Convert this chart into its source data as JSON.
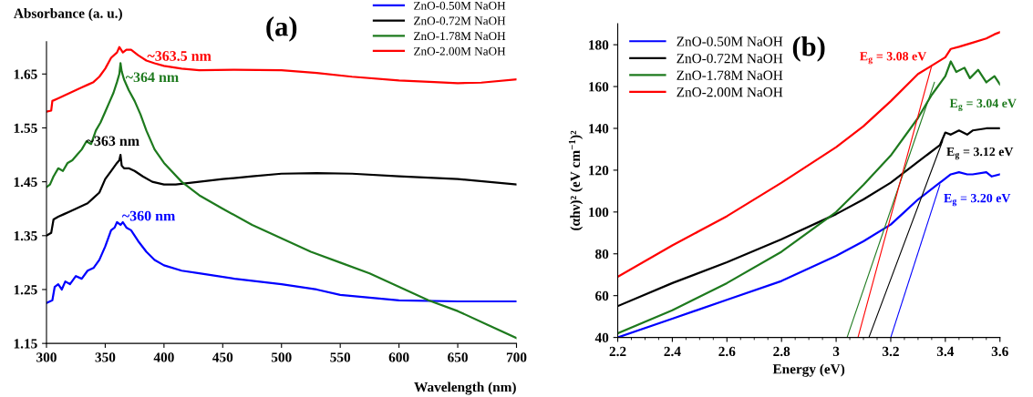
{
  "chart_data": [
    {
      "type": "line",
      "title": "(a)",
      "xlabel": "Wavelength (nm)",
      "ylabel": "Absorbance (a. u.)",
      "legend": "top right",
      "grid": false,
      "xlim": [
        300,
        700
      ],
      "xticks": [
        300,
        350,
        400,
        450,
        500,
        550,
        600,
        650,
        700
      ],
      "ylim": [
        1.15,
        1.71
      ],
      "yticks": [
        1.15,
        1.25,
        1.35,
        1.45,
        1.55,
        1.65
      ],
      "series": [
        {
          "name": "ZnO-0.50M NaOH",
          "color": "#0000ff",
          "x": [
            300,
            305,
            307,
            310,
            313,
            316,
            320,
            325,
            330,
            335,
            340,
            345,
            350,
            355,
            358,
            360,
            363,
            365,
            368,
            372,
            378,
            385,
            392,
            400,
            415,
            430,
            460,
            500,
            530,
            550,
            575,
            600,
            650,
            700
          ],
          "values": [
            1.225,
            1.23,
            1.255,
            1.26,
            1.25,
            1.265,
            1.26,
            1.275,
            1.27,
            1.285,
            1.29,
            1.305,
            1.33,
            1.36,
            1.365,
            1.375,
            1.37,
            1.375,
            1.365,
            1.36,
            1.34,
            1.32,
            1.305,
            1.295,
            1.285,
            1.28,
            1.27,
            1.26,
            1.25,
            1.24,
            1.235,
            1.23,
            1.228,
            1.228
          ]
        },
        {
          "name": "ZnO-0.72M NaOH",
          "color": "#000000",
          "x": [
            300,
            304,
            306,
            310,
            315,
            320,
            325,
            330,
            335,
            340,
            345,
            350,
            355,
            360,
            362,
            363,
            364,
            366,
            370,
            375,
            382,
            390,
            400,
            410,
            430,
            450,
            475,
            500,
            530,
            560,
            600,
            650,
            700
          ],
          "values": [
            1.35,
            1.355,
            1.38,
            1.385,
            1.39,
            1.395,
            1.4,
            1.405,
            1.41,
            1.42,
            1.43,
            1.455,
            1.47,
            1.485,
            1.49,
            1.5,
            1.48,
            1.475,
            1.475,
            1.47,
            1.46,
            1.45,
            1.445,
            1.445,
            1.45,
            1.455,
            1.46,
            1.465,
            1.466,
            1.465,
            1.46,
            1.455,
            1.445
          ]
        },
        {
          "name": "ZnO-1.78M NaOH",
          "color": "#1e7a1e",
          "x": [
            300,
            303,
            306,
            310,
            314,
            318,
            322,
            326,
            330,
            334,
            338,
            342,
            346,
            350,
            354,
            357,
            360,
            362,
            363,
            364,
            366,
            370,
            375,
            380,
            385,
            392,
            400,
            415,
            430,
            450,
            475,
            500,
            525,
            550,
            575,
            600,
            625,
            650,
            675,
            700
          ],
          "values": [
            1.44,
            1.445,
            1.46,
            1.475,
            1.47,
            1.485,
            1.49,
            1.5,
            1.51,
            1.525,
            1.52,
            1.545,
            1.56,
            1.58,
            1.6,
            1.615,
            1.635,
            1.65,
            1.67,
            1.655,
            1.64,
            1.62,
            1.6,
            1.575,
            1.545,
            1.51,
            1.485,
            1.45,
            1.425,
            1.4,
            1.37,
            1.345,
            1.32,
            1.3,
            1.28,
            1.255,
            1.23,
            1.21,
            1.185,
            1.16
          ]
        },
        {
          "name": "ZnO-2.00M NaOH",
          "color": "#ff0000",
          "x": [
            300,
            304,
            305,
            310,
            315,
            320,
            325,
            330,
            335,
            340,
            345,
            350,
            355,
            360,
            362,
            365,
            368,
            372,
            378,
            385,
            392,
            400,
            415,
            430,
            460,
            500,
            530,
            560,
            600,
            630,
            650,
            670,
            700
          ],
          "values": [
            1.58,
            1.582,
            1.6,
            1.605,
            1.61,
            1.615,
            1.62,
            1.625,
            1.63,
            1.635,
            1.645,
            1.66,
            1.68,
            1.69,
            1.7,
            1.69,
            1.695,
            1.695,
            1.685,
            1.675,
            1.67,
            1.665,
            1.66,
            1.657,
            1.658,
            1.657,
            1.652,
            1.645,
            1.638,
            1.635,
            1.633,
            1.634,
            1.64
          ]
        }
      ],
      "annotations": [
        "~363.5 nm",
        "~364 nm",
        "~363 nm",
        "~360 nm"
      ]
    },
    {
      "type": "line",
      "title": "(b)",
      "xlabel": "Energy (eV)",
      "ylabel": "(αhν)² (eV cm$^{−1}$)²",
      "legend": "top left",
      "grid": false,
      "xlim": [
        2.2,
        3.6
      ],
      "xticks": [
        2.2,
        {
          "value": 2.25,
          "label": null
        },
        {
          "value": 2.3,
          "label": null
        },
        {
          "value": 2.35,
          "label": null
        },
        2.4,
        {
          "value": 2.45,
          "label": null
        },
        {
          "value": 2.5,
          "label": null
        },
        {
          "value": 2.55,
          "label": null
        },
        2.6,
        {
          "value": 2.65,
          "label": null
        },
        {
          "value": 2.7,
          "label": null
        },
        {
          "value": 2.75,
          "label": null
        },
        2.8,
        {
          "value": 2.85,
          "label": null
        },
        {
          "value": 2.9,
          "label": null
        },
        {
          "value": 2.95,
          "label": null
        },
        3,
        {
          "value": 3.05,
          "label": null
        },
        {
          "value": 3.1,
          "label": null
        },
        {
          "value": 3.15,
          "label": null
        },
        3.2,
        {
          "value": 3.25,
          "label": null
        },
        {
          "value": 3.3,
          "label": null
        },
        {
          "value": 3.35,
          "label": null
        },
        3.4,
        {
          "value": 3.45,
          "label": null
        },
        {
          "value": 3.5,
          "label": null
        },
        {
          "value": 3.55,
          "label": null
        },
        3.6
      ],
      "ylim": [
        40,
        190
      ],
      "yticks": [
        40,
        60,
        80,
        100,
        120,
        140,
        160,
        180
      ],
      "series": [
        {
          "name": "ZnO-0.50M NaOH",
          "color": "#0000ff",
          "x": [
            2.2,
            2.4,
            2.6,
            2.8,
            3.0,
            3.1,
            3.2,
            3.25,
            3.3,
            3.37,
            3.39,
            3.42,
            3.45,
            3.48,
            3.5,
            3.55,
            3.57,
            3.6
          ],
          "values": [
            40,
            49,
            58,
            67,
            79,
            86,
            94,
            100,
            106,
            113,
            115,
            118,
            119,
            118,
            118,
            119,
            117,
            118
          ]
        },
        {
          "name": "ZnO-0.72M NaOH",
          "color": "#000000",
          "x": [
            2.2,
            2.4,
            2.6,
            2.8,
            3.0,
            3.1,
            3.2,
            3.3,
            3.38,
            3.4,
            3.42,
            3.45,
            3.48,
            3.5,
            3.55,
            3.6
          ],
          "values": [
            55,
            66,
            76,
            87,
            99,
            106,
            114,
            124,
            132,
            138,
            137,
            139,
            137,
            139,
            140,
            140
          ]
        },
        {
          "name": "ZnO-1.78M NaOH",
          "color": "#1e7a1e",
          "x": [
            2.2,
            2.4,
            2.6,
            2.8,
            3.0,
            3.1,
            3.2,
            3.3,
            3.35,
            3.4,
            3.42,
            3.44,
            3.47,
            3.49,
            3.52,
            3.55,
            3.58,
            3.6
          ],
          "values": [
            42,
            53,
            66,
            81,
            100,
            113,
            127,
            145,
            156,
            165,
            172,
            167,
            169,
            164,
            168,
            162,
            165,
            161
          ]
        },
        {
          "name": "ZnO-2.00M NaOH",
          "color": "#ff0000",
          "x": [
            2.2,
            2.4,
            2.6,
            2.8,
            3.0,
            3.1,
            3.2,
            3.3,
            3.35,
            3.4,
            3.42,
            3.45,
            3.5,
            3.55,
            3.58,
            3.6
          ],
          "values": [
            69,
            84,
            98,
            114,
            131,
            141,
            153,
            166,
            170,
            174,
            178,
            179,
            181,
            183,
            185,
            186
          ]
        },
        {
          "color": "#0000ff",
          "x": [
            3.2,
            3.38
          ],
          "values": [
            40,
            113
          ]
        },
        {
          "color": "#000000",
          "x": [
            3.12,
            3.39
          ],
          "values": [
            40,
            134
          ]
        },
        {
          "color": "#1e7a1e",
          "x": [
            3.04,
            3.36
          ],
          "values": [
            40,
            162
          ]
        },
        {
          "color": "#ff0000",
          "x": [
            3.08,
            3.35
          ],
          "values": [
            40,
            170
          ]
        }
      ],
      "annotations": [
        "E$_{g}$ = 3.08 eV",
        "E$_{g}$ = 3.04 eV",
        "E$_{g}$ = 3.12 eV",
        "E$_{g}$ = 3.20 eV"
      ]
    }
  ]
}
